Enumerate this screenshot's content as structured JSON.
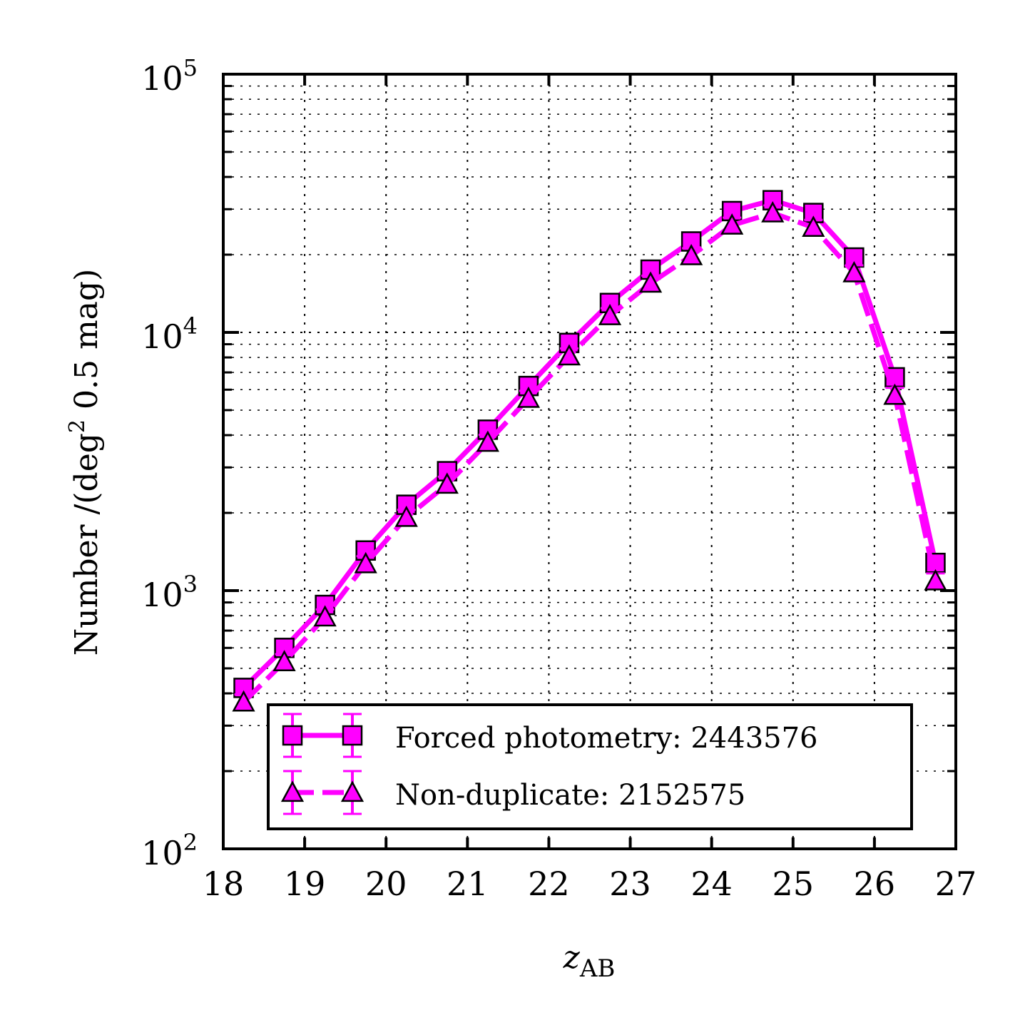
{
  "chart_data": {
    "type": "line",
    "title": "",
    "xlabel": "z",
    "xlabel_sub": "AB",
    "ylabel": "Number /(deg",
    "ylabel_sup": "2",
    "ylabel_tail": " 0.5 mag)",
    "xlim": [
      18,
      27
    ],
    "ylim": [
      100,
      100000
    ],
    "yscale": "log",
    "grid": true,
    "legend_position": "lower-right",
    "x_ticks": [
      "18",
      "19",
      "20",
      "21",
      "22",
      "23",
      "24",
      "25",
      "26",
      "27"
    ],
    "y_ticks": [
      {
        "base": "10",
        "exp": "2"
      },
      {
        "base": "10",
        "exp": "3"
      },
      {
        "base": "10",
        "exp": "4"
      },
      {
        "base": "10",
        "exp": "5"
      }
    ],
    "color": "#ff00ff",
    "x": [
      18.25,
      18.75,
      19.25,
      19.75,
      20.25,
      20.75,
      21.25,
      21.75,
      22.25,
      22.75,
      23.25,
      23.75,
      24.25,
      24.75,
      25.25,
      25.75,
      26.25,
      26.75
    ],
    "series": [
      {
        "name": "Forced photometry: 2443576",
        "marker": "square",
        "linestyle": "solid",
        "values": [
          420,
          600,
          880,
          1430,
          2150,
          2900,
          4200,
          6200,
          9100,
          13000,
          17500,
          22500,
          29500,
          32500,
          29000,
          19500,
          6700,
          1280
        ]
      },
      {
        "name": "Non-duplicate: 2152575",
        "marker": "triangle",
        "linestyle": "dashed",
        "values": [
          370,
          530,
          790,
          1270,
          1920,
          2580,
          3750,
          5550,
          8100,
          11600,
          15500,
          19800,
          26000,
          29000,
          25500,
          17000,
          5700,
          1090
        ]
      }
    ]
  }
}
